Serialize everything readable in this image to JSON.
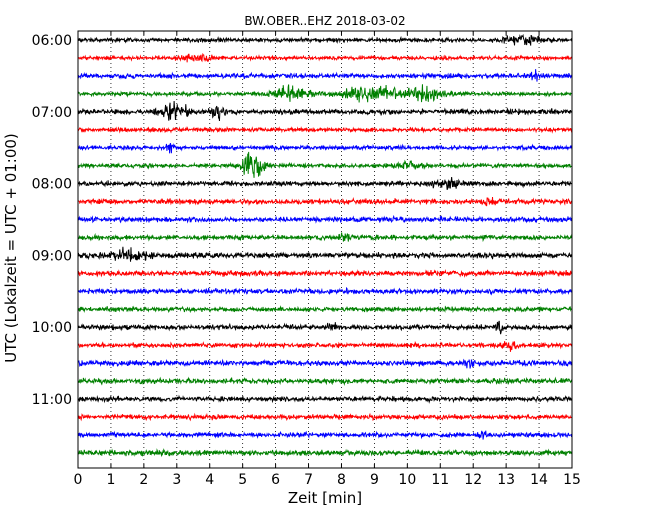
{
  "chart_data": {
    "type": "line",
    "title": "BW.OBER..EHZ 2018-03-02",
    "xlabel": "Zeit  [min]",
    "ylabel": "UTC (Lokalzeit = UTC + 01:00)",
    "xlim": [
      0,
      15
    ],
    "x_ticks": [
      "0",
      "1",
      "2",
      "3",
      "4",
      "5",
      "6",
      "7",
      "8",
      "9",
      "10",
      "11",
      "12",
      "13",
      "14",
      "15"
    ],
    "y_ticks": [
      "06:00",
      "07:00",
      "08:00",
      "09:00",
      "10:00",
      "11:00"
    ],
    "grid": true,
    "trace_colors": [
      "#000000",
      "#ff0000",
      "#0000ff",
      "#008000"
    ],
    "traces": [
      {
        "start": "06:00",
        "color": "#000000",
        "noise": 0.22,
        "events": [
          {
            "t": 13.5,
            "amp": 0.55,
            "width": 1.0
          }
        ]
      },
      {
        "start": "06:15",
        "color": "#ff0000",
        "noise": 0.2,
        "events": [
          {
            "t": 3.6,
            "amp": 0.35,
            "width": 0.8
          }
        ]
      },
      {
        "start": "06:30",
        "color": "#0000ff",
        "noise": 0.25,
        "events": [
          {
            "t": 13.9,
            "amp": 0.6,
            "width": 0.4
          }
        ]
      },
      {
        "start": "06:45",
        "color": "#008000",
        "noise": 0.2,
        "events": [
          {
            "t": 6.5,
            "amp": 0.9,
            "width": 1.0
          },
          {
            "t": 9.0,
            "amp": 0.7,
            "width": 2.0
          },
          {
            "t": 10.6,
            "amp": 0.8,
            "width": 1.0
          }
        ]
      },
      {
        "start": "07:00",
        "color": "#000000",
        "noise": 0.28,
        "events": [
          {
            "t": 2.9,
            "amp": 0.8,
            "width": 0.8
          },
          {
            "t": 4.2,
            "amp": 0.6,
            "width": 0.4
          }
        ]
      },
      {
        "start": "07:15",
        "color": "#ff0000",
        "noise": 0.22,
        "events": []
      },
      {
        "start": "07:30",
        "color": "#0000ff",
        "noise": 0.22,
        "events": [
          {
            "t": 2.8,
            "amp": 0.7,
            "width": 0.2
          }
        ]
      },
      {
        "start": "07:45",
        "color": "#008000",
        "noise": 0.22,
        "events": [
          {
            "t": 5.3,
            "amp": 1.6,
            "width": 0.6
          },
          {
            "t": 10.0,
            "amp": 0.4,
            "width": 1.0
          }
        ]
      },
      {
        "start": "08:00",
        "color": "#000000",
        "noise": 0.25,
        "events": [
          {
            "t": 11.2,
            "amp": 0.5,
            "width": 1.0
          }
        ]
      },
      {
        "start": "08:15",
        "color": "#ff0000",
        "noise": 0.28,
        "events": [
          {
            "t": 12.5,
            "amp": 0.5,
            "width": 0.4
          }
        ]
      },
      {
        "start": "08:30",
        "color": "#0000ff",
        "noise": 0.28,
        "events": []
      },
      {
        "start": "08:45",
        "color": "#008000",
        "noise": 0.25,
        "events": [
          {
            "t": 8.1,
            "amp": 0.5,
            "width": 0.4
          }
        ]
      },
      {
        "start": "09:00",
        "color": "#000000",
        "noise": 0.3,
        "events": [
          {
            "t": 1.5,
            "amp": 0.6,
            "width": 1.0
          }
        ]
      },
      {
        "start": "09:15",
        "color": "#ff0000",
        "noise": 0.28,
        "events": []
      },
      {
        "start": "09:30",
        "color": "#0000ff",
        "noise": 0.28,
        "events": []
      },
      {
        "start": "09:45",
        "color": "#008000",
        "noise": 0.25,
        "events": []
      },
      {
        "start": "10:00",
        "color": "#000000",
        "noise": 0.28,
        "events": [
          {
            "t": 7.7,
            "amp": 0.6,
            "width": 0.3
          },
          {
            "t": 12.8,
            "amp": 0.6,
            "width": 0.3
          }
        ]
      },
      {
        "start": "10:15",
        "color": "#ff0000",
        "noise": 0.25,
        "events": [
          {
            "t": 13.1,
            "amp": 0.6,
            "width": 0.4
          }
        ]
      },
      {
        "start": "10:30",
        "color": "#0000ff",
        "noise": 0.28,
        "events": [
          {
            "t": 11.9,
            "amp": 0.6,
            "width": 0.3
          }
        ]
      },
      {
        "start": "10:45",
        "color": "#008000",
        "noise": 0.28,
        "events": []
      },
      {
        "start": "11:00",
        "color": "#000000",
        "noise": 0.25,
        "events": []
      },
      {
        "start": "11:15",
        "color": "#ff0000",
        "noise": 0.25,
        "events": []
      },
      {
        "start": "11:30",
        "color": "#0000ff",
        "noise": 0.25,
        "events": [
          {
            "t": 12.3,
            "amp": 0.5,
            "width": 0.3
          }
        ]
      },
      {
        "start": "11:45",
        "color": "#008000",
        "noise": 0.28,
        "events": []
      }
    ]
  }
}
